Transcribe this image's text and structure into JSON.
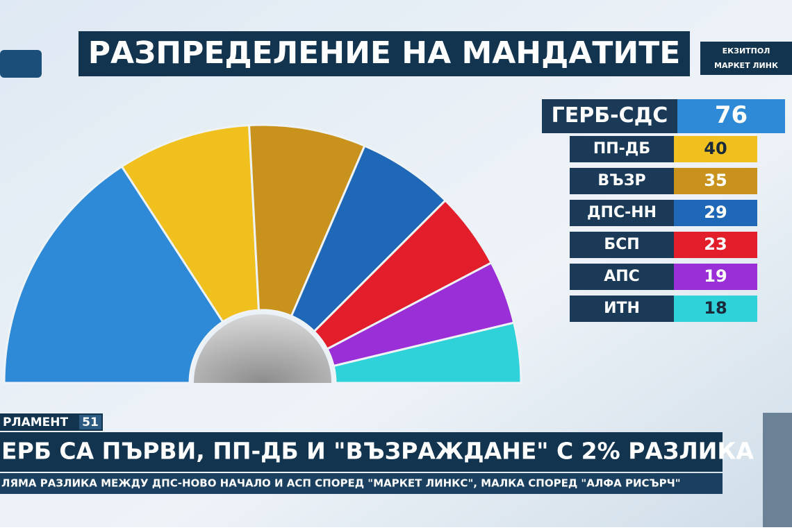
{
  "chart_data": {
    "type": "half-donut",
    "title": "РАЗПРЕДЕЛЕНИЕ НА МАНДАТИТЕ",
    "source": [
      "ЕКЗИТПОЛ",
      "МАРКЕТ ЛИНК"
    ],
    "categories": [
      "ГЕРБ-СДС",
      "ПП-ДБ",
      "ВЪЗР",
      "ДПС-НН",
      "БСП",
      "АПС",
      "ИТН"
    ],
    "values": [
      76,
      40,
      35,
      29,
      23,
      19,
      18
    ],
    "colors": [
      "#2e8ad6",
      "#f0c01e",
      "#c8921c",
      "#1f68b8",
      "#e11e2a",
      "#9a2fd8",
      "#2ed2d8"
    ]
  },
  "ticker": {
    "tag": "РЛАМЕНТ",
    "number": "51",
    "headline": "ЕРБ СА ПЪРВИ, ПП-ДБ И \"ВЪЗРАЖДАНЕ\" С 2% РАЗЛИКА",
    "subline": "ЛЯМА РАЗЛИКА МЕЖДУ ДПС-НОВО НАЧАЛО И АСП СПОРЕД \"МАРКЕТ ЛИНКС\", МАЛКА СПОРЕД \"АЛФА РИСЪРЧ\""
  }
}
